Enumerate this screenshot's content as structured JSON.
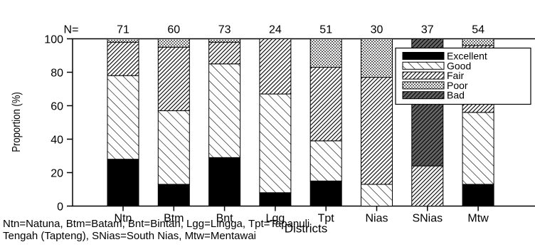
{
  "chart_data": {
    "type": "bar",
    "stacked": true,
    "ylabel": "Proportion (%)",
    "xlabel": "Districts",
    "ylim": [
      0,
      100
    ],
    "yticks": [
      0,
      20,
      40,
      60,
      80,
      100
    ],
    "n_label": "N=",
    "categories": [
      "Ntn",
      "Btm",
      "Bnt",
      "Lgg",
      "Tpt",
      "Nias",
      "SNias",
      "Mtw"
    ],
    "n_values": [
      71,
      60,
      73,
      24,
      51,
      30,
      37,
      54
    ],
    "legend_position": "top-right",
    "series": [
      {
        "name": "Excellent",
        "pattern": "solid",
        "values": [
          28,
          13,
          29,
          8,
          15,
          0,
          0,
          13
        ]
      },
      {
        "name": "Good",
        "pattern": "diagonal",
        "values": [
          50,
          44,
          56,
          59,
          24,
          13,
          0,
          43
        ]
      },
      {
        "name": "Fair",
        "pattern": "dense-diag",
        "values": [
          20,
          38,
          13,
          33,
          44,
          64,
          24,
          40
        ]
      },
      {
        "name": "Poor",
        "pattern": "dots",
        "values": [
          2,
          5,
          2,
          0,
          17,
          23,
          0,
          4
        ]
      },
      {
        "name": "Bad",
        "pattern": "dark-diag",
        "values": [
          0,
          0,
          0,
          0,
          0,
          0,
          76,
          0
        ]
      }
    ]
  },
  "footnote": {
    "line1": "Ntn=Natuna, Btm=Batam, Bnt=Bintan, Lgg=Lingga, Tpt=Tapanuli",
    "line2": "Tengah (Tapteng), SNias=South Nias, Mtw=Mentawai"
  }
}
